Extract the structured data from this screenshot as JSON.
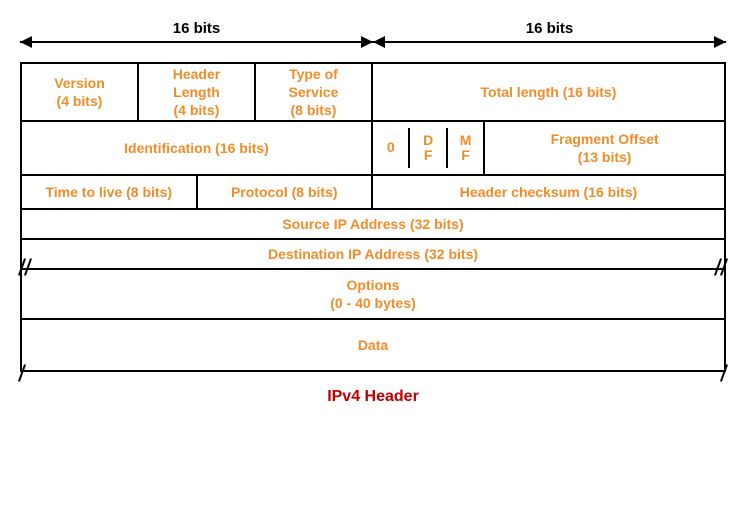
{
  "diagram": {
    "title": "IPv4 Header",
    "accent_color": "#f28c28",
    "title_color": "#c00000",
    "border_color": "#000000",
    "background": "#ffffff",
    "total_bits": 32,
    "arrows": {
      "left_label": "16 bits",
      "right_label": "16 bits"
    },
    "rows": [
      {
        "height": 58,
        "cells": [
          {
            "label": "Version\n(4 bits)",
            "bits": 4,
            "width_pct": 16.666
          },
          {
            "label": "Header\nLength\n(4 bits)",
            "bits": 4,
            "width_pct": 16.666
          },
          {
            "label": "Type of\nService\n(8 bits)",
            "bits": 8,
            "width_pct": 16.666
          },
          {
            "label": "Total length (16 bits)",
            "bits": 16,
            "width_pct": 50
          }
        ]
      },
      {
        "height": 54,
        "cells": [
          {
            "label": "Identification (16 bits)",
            "bits": 16,
            "width_pct": 50
          },
          {
            "type": "flags",
            "width_pct": 16,
            "flags": [
              "0",
              "D\nF",
              "M\nF"
            ]
          },
          {
            "label": "Fragment Offset\n(13 bits)",
            "bits": 13,
            "width_pct": 34
          }
        ]
      },
      {
        "height": 34,
        "cells": [
          {
            "label": "Time to live (8 bits)",
            "bits": 8,
            "width_pct": 25
          },
          {
            "label": "Protocol (8 bits)",
            "bits": 8,
            "width_pct": 25
          },
          {
            "label": "Header checksum (16 bits)",
            "bits": 16,
            "width_pct": 50
          }
        ]
      },
      {
        "height": 30,
        "cells": [
          {
            "label": "Source IP Address (32 bits)",
            "bits": 32,
            "width_pct": 100
          }
        ]
      },
      {
        "height": 30,
        "cells": [
          {
            "label": "Destination IP Address (32 bits)",
            "bits": 32,
            "width_pct": 100
          }
        ]
      },
      {
        "height": 50,
        "variable": true,
        "cells": [
          {
            "label": "Options\n(0 - 40 bytes)",
            "width_pct": 100
          }
        ]
      },
      {
        "height": 50,
        "variable": true,
        "cells": [
          {
            "label": "Data",
            "width_pct": 100
          }
        ]
      }
    ]
  }
}
